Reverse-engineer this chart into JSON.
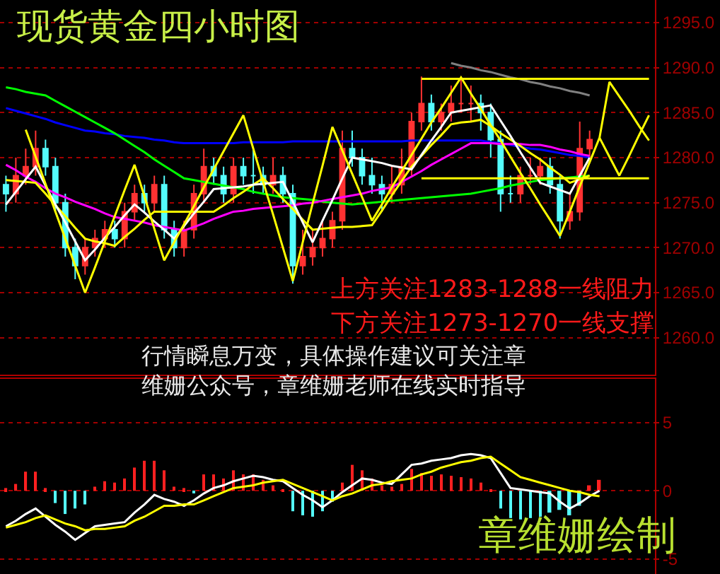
{
  "chart_data": [
    {
      "type": "candlestick",
      "title": "现货黄金四小时图",
      "categories": [
        null,
        null,
        null,
        null,
        null,
        null,
        null,
        null,
        null,
        null,
        null,
        null,
        null,
        null,
        null,
        null,
        null,
        null,
        null,
        null,
        null,
        null,
        null,
        null,
        null,
        null,
        null,
        null,
        null,
        null,
        null,
        null,
        null,
        null,
        null,
        null,
        null,
        null,
        null,
        null,
        null,
        null,
        null,
        null,
        null,
        null,
        null,
        null,
        null,
        null,
        null,
        null,
        null,
        null,
        null,
        null,
        null,
        null,
        null,
        null,
        null,
        null,
        null,
        null,
        null,
        null
      ],
      "ohlc": [
        [
          1277,
          1278,
          1274,
          1276
        ],
        [
          1276,
          1280,
          1275,
          1278
        ],
        [
          1278,
          1281,
          1277,
          1279
        ],
        [
          1279,
          1283,
          1278,
          1281
        ],
        [
          1281,
          1282,
          1278,
          1279
        ],
        [
          1279,
          1280,
          1274,
          1275
        ],
        [
          1275,
          1276,
          1269,
          1270
        ],
        [
          1270,
          1271,
          1266.5,
          1268
        ],
        [
          1268,
          1271,
          1267,
          1270
        ],
        [
          1270,
          1272,
          1269,
          1271
        ],
        [
          1271,
          1273,
          1270,
          1272
        ],
        [
          1272,
          1273,
          1270,
          1271
        ],
        [
          1271,
          1275,
          1270,
          1274
        ],
        [
          1274,
          1277,
          1273,
          1276
        ],
        [
          1276,
          1277,
          1274,
          1275
        ],
        [
          1275,
          1278,
          1274,
          1277
        ],
        [
          1277,
          1278,
          1271,
          1272
        ],
        [
          1272,
          1273,
          1269,
          1270
        ],
        [
          1270,
          1273,
          1269,
          1272
        ],
        [
          1272,
          1277,
          1271,
          1276
        ],
        [
          1276,
          1281,
          1275,
          1279
        ],
        [
          1279,
          1280,
          1277,
          1278
        ],
        [
          1278,
          1279,
          1275,
          1276
        ],
        [
          1276,
          1280,
          1275,
          1279
        ],
        [
          1279,
          1280,
          1277,
          1278
        ],
        [
          1278,
          1281,
          1276,
          1278
        ],
        [
          1278,
          1279,
          1276,
          1277
        ],
        [
          1277,
          1280,
          1276,
          1278
        ],
        [
          1278,
          1279,
          1275,
          1276
        ],
        [
          1276,
          1277,
          1266,
          1268
        ],
        [
          1268,
          1272,
          1267,
          1269
        ],
        [
          1269,
          1272,
          1268,
          1270
        ],
        [
          1270,
          1273,
          1269,
          1271
        ],
        [
          1271,
          1274,
          1270,
          1273
        ],
        [
          1273,
          1283,
          1272,
          1281
        ],
        [
          1281,
          1283,
          1279,
          1280
        ],
        [
          1280,
          1281,
          1277,
          1278
        ],
        [
          1278,
          1280,
          1276,
          1277
        ],
        [
          1277,
          1278,
          1274,
          1276
        ],
        [
          1276,
          1279,
          1275,
          1277
        ],
        [
          1277,
          1281,
          1276,
          1279
        ],
        [
          1279,
          1285,
          1278,
          1284
        ],
        [
          1284,
          1289,
          1283,
          1286
        ],
        [
          1286,
          1287,
          1283,
          1284
        ],
        [
          1284,
          1286,
          1283,
          1285
        ],
        [
          1285,
          1288,
          1284,
          1286
        ],
        [
          1286,
          1289,
          1285,
          1286
        ],
        [
          1286,
          1288,
          1284,
          1286
        ],
        [
          1286,
          1287,
          1283,
          1285
        ],
        [
          1285,
          1286,
          1280,
          1282
        ],
        [
          1282,
          1283,
          1274,
          1276
        ],
        [
          1276,
          1278,
          1275,
          1276
        ],
        [
          1276,
          1279,
          1275,
          1278
        ],
        [
          1278,
          1280,
          1277,
          1278
        ],
        [
          1278,
          1280,
          1277,
          1279
        ],
        [
          1279,
          1280,
          1276,
          1277
        ],
        [
          1277,
          1278,
          1271,
          1273
        ],
        [
          1273,
          1276,
          1272,
          1274
        ],
        [
          1274,
          1284,
          1273,
          1281
        ],
        [
          1281,
          1283,
          1280,
          1282
        ],
        null,
        null,
        null,
        null,
        null,
        null
      ],
      "ylim": [
        1255.9,
        1297.5
      ],
      "yticks": [
        {
          "value": 1260,
          "label": "1260.0"
        },
        {
          "value": 1265,
          "label": "1265.0"
        },
        {
          "value": 1270,
          "label": "1270.0"
        },
        {
          "value": 1275,
          "label": "1275.0"
        },
        {
          "value": 1280,
          "label": "1280.0"
        },
        {
          "value": 1285,
          "label": "1285.0"
        },
        {
          "value": 1290,
          "label": "1290.0"
        },
        {
          "value": 1295,
          "label": "1295.0"
        }
      ],
      "tick_labels": "y",
      "grid": "y",
      "line_style": "solid",
      "series": [
        {
          "type": "line",
          "color": "#0000ff",
          "values": [
            1285.5,
            1285.2,
            1284.9,
            1284.6,
            1284.3,
            1283.9,
            1283.6,
            1283.3,
            1283.0,
            1282.9,
            1282.7,
            1282.6,
            1282.4,
            1282.3,
            1282.2,
            1282.0,
            1281.9,
            1281.7,
            1281.6,
            1281.6,
            1281.6,
            1281.6,
            1281.6,
            1281.6,
            1281.7,
            1281.7,
            1281.7,
            1281.7,
            1281.7,
            1281.8,
            1281.8,
            1281.8,
            1281.8,
            1281.8,
            1281.8,
            1281.8,
            1281.8,
            1281.8,
            1281.8,
            1281.8,
            1281.8,
            1281.9,
            1281.9,
            1281.9,
            1281.9,
            1281.9,
            1281.9,
            1281.9,
            1281.9,
            1281.7,
            1281.6,
            1281.4,
            1281.2,
            1281.0,
            1280.9,
            1280.7,
            1280.5,
            1280.3,
            1280.2,
            1280.0,
            null,
            null,
            null,
            null,
            null,
            null
          ]
        },
        {
          "type": "line",
          "color": "#00ff00",
          "values": [
            1287.8,
            1287.6,
            1287.3,
            1287.1,
            1286.9,
            1286.3,
            1285.7,
            1285.1,
            1284.5,
            1283.9,
            1283.3,
            1282.7,
            1282.0,
            1281.3,
            1280.6,
            1279.8,
            1279.1,
            1278.4,
            1277.7,
            1277.5,
            1277.3,
            1277.1,
            1276.9,
            1276.7,
            1276.5,
            1276.2,
            1276.0,
            1275.8,
            1275.6,
            1275.5,
            1275.4,
            1275.3,
            1275.1,
            1275.0,
            1274.9,
            1274.8,
            1274.9,
            1275.0,
            1275.1,
            1275.2,
            1275.3,
            1275.4,
            1275.5,
            1275.6,
            1275.7,
            1275.8,
            1275.9,
            1276.0,
            1276.2,
            1276.4,
            1276.6,
            1276.9,
            1277.1,
            1277.3,
            1277.5,
            1277.6,
            1277.7,
            1277.8,
            1277.9,
            1278.0,
            null,
            null,
            null,
            null,
            null,
            null
          ]
        },
        {
          "type": "line",
          "color": "#ff00ff",
          "values": [
            1279.2,
            1278.6,
            1277.9,
            1277.3,
            1276.6,
            1276.0,
            1275.6,
            1275.1,
            1274.7,
            1274.3,
            1273.8,
            1273.4,
            1273.2,
            1273.0,
            1272.8,
            1272.5,
            1272.3,
            1272.1,
            1271.9,
            1272.3,
            1272.7,
            1273.2,
            1273.6,
            1274.0,
            1274.1,
            1274.3,
            1274.4,
            1274.5,
            1274.6,
            1274.7,
            1274.9,
            1275.0,
            1275.2,
            1275.4,
            1275.6,
            1275.8,
            1276.0,
            1276.3,
            1276.5,
            1276.7,
            1277.3,
            1277.9,
            1278.5,
            1279.2,
            1279.8,
            1280.4,
            1281.0,
            1281.6,
            1281.6,
            1281.6,
            1281.5,
            1281.5,
            1281.5,
            1281.4,
            1281.4,
            1281.2,
            1280.9,
            1280.7,
            1280.4,
            1280.2,
            null,
            null,
            null,
            null,
            null,
            null
          ]
        },
        {
          "type": "line",
          "color": "#ffff00",
          "values": [
            1277.5,
            1277.4,
            1277.3,
            1277.2,
            1276.0,
            1274.7,
            1273.5,
            1272.2,
            1271.0,
            1270.7,
            1270.5,
            1270.2,
            1271.2,
            1272.1,
            1273.1,
            1274.0,
            1274.0,
            1274.0,
            1274.0,
            1274.0,
            1274.0,
            1274.0,
            1274.7,
            1275.5,
            1276.2,
            1277.0,
            1277.7,
            1276.6,
            1275.4,
            1274.3,
            1273.1,
            1272.0,
            1272.1,
            1272.2,
            1272.3,
            1272.3,
            1272.4,
            1272.5,
            1274.1,
            1275.8,
            1277.4,
            1279.0,
            1280.2,
            1281.4,
            1282.5,
            1283.7,
            1283.9,
            1284.0,
            1284.2,
            1283.5,
            1282.7,
            1282.0,
            1281.3,
            1280.5,
            1279.8,
            1278.9,
            1278.1,
            1277.2,
            1277.6,
            1278.0,
            null,
            null,
            null,
            null,
            null,
            null
          ]
        },
        {
          "type": "line",
          "color": "#ffffff",
          "values": [
            1274.8,
            1276.2,
            1277.6,
            1279.0,
            1276.9,
            1274.8,
            1272.8,
            1270.7,
            1268.6,
            1269.8,
            1271.1,
            1272.3,
            1273.6,
            1274.8,
            1273.9,
            1272.9,
            1272.0,
            1271.0,
            1272.4,
            1273.8,
            1275.1,
            1276.5,
            1276.6,
            1276.7,
            1276.8,
            1277.0,
            1277.1,
            1277.2,
            1277.3,
            1275.1,
            1272.8,
            1270.6,
            1273.0,
            1275.3,
            1277.7,
            1280.0,
            1279.8,
            1279.6,
            1279.4,
            1279.1,
            1278.9,
            1278.7,
            1280.3,
            1281.9,
            1283.4,
            1285.0,
            1285.2,
            1285.4,
            1285.6,
            1285.8,
            1284.1,
            1282.4,
            1280.6,
            1278.9,
            1277.2,
            1276.8,
            1276.4,
            1276.0,
            1278.0,
            1280.0,
            null,
            null,
            null,
            null,
            null,
            null
          ]
        },
        {
          "type": "line",
          "color": "#808080",
          "values": [
            null,
            null,
            null,
            null,
            null,
            null,
            null,
            null,
            null,
            null,
            null,
            null,
            null,
            null,
            null,
            null,
            null,
            null,
            null,
            null,
            null,
            null,
            null,
            null,
            null,
            null,
            null,
            null,
            null,
            null,
            null,
            null,
            null,
            null,
            null,
            null,
            null,
            null,
            null,
            null,
            null,
            null,
            null,
            null,
            null,
            1290.5,
            1290.2,
            1290.0,
            1289.7,
            1289.5,
            1289.2,
            1288.9,
            1288.7,
            1288.4,
            1288.2,
            1287.9,
            1287.7,
            1287.4,
            1287.2,
            1286.9,
            null,
            null,
            null,
            null,
            null,
            null
          ]
        },
        {
          "type": "line",
          "color": "#ffff00",
          "values": [
            null,
            null,
            null,
            null,
            null,
            null,
            null,
            null,
            null,
            null,
            null,
            null,
            null,
            null,
            null,
            null,
            null,
            null,
            null,
            null,
            null,
            null,
            null,
            null,
            null,
            null,
            null,
            null,
            null,
            null,
            null,
            null,
            null,
            null,
            null,
            null,
            null,
            null,
            null,
            null,
            null,
            null,
            1288.75,
            1288.75,
            1288.75,
            1288.75,
            1288.75,
            1288.75,
            1288.75,
            1288.75,
            1288.75,
            1288.75,
            1288.75,
            1288.75,
            1288.75,
            1288.75,
            1288.75,
            1288.75,
            1288.75,
            1288.75,
            1288.75,
            1288.75,
            1288.75,
            1288.75,
            1288.75,
            1288.75
          ]
        },
        {
          "type": "line",
          "color": "#ffff00",
          "values": [
            null,
            null,
            null,
            null,
            null,
            null,
            null,
            null,
            null,
            null,
            null,
            null,
            null,
            null,
            null,
            null,
            null,
            null,
            null,
            null,
            null,
            null,
            null,
            null,
            null,
            null,
            null,
            null,
            null,
            null,
            null,
            null,
            null,
            null,
            null,
            null,
            null,
            null,
            null,
            null,
            null,
            null,
            1277.7,
            1277.7,
            1277.7,
            1277.7,
            1277.7,
            1277.7,
            1277.7,
            1277.7,
            1277.7,
            1277.7,
            1277.7,
            1277.7,
            1277.7,
            1277.7,
            1277.7,
            1277.7,
            1277.7,
            1277.7,
            1277.7,
            1277.7,
            1277.7,
            1277.7,
            1277.7,
            1277.7
          ]
        },
        {
          "type": "line",
          "color": "#ffff00",
          "values": [
            null,
            null,
            1283.1,
            1280.1,
            1277.1,
            1274.0,
            1271.0,
            1268.0,
            1265.0,
            1267.8,
            1270.7,
            1273.5,
            1276.4,
            1279.2,
            1275.7,
            1272.1,
            1268.6,
            1270.6,
            1272.6,
            1274.6,
            1276.7,
            1278.7,
            1280.7,
            1282.7,
            1284.7,
            1281.0,
            1277.3,
            1273.7,
            1270.0,
            1266.3,
            1270.6,
            1274.9,
            1279.1,
            1283.4,
            1280.8,
            1278.2,
            1275.6,
            1273.0,
            1274.8,
            1276.7,
            1278.5,
            1280.3,
            1282.1,
            1283.9,
            1285.5,
            1287.2,
            1288.9,
            1287.1,
            1285.4,
            1283.6,
            1281.9,
            1280.1,
            1278.3,
            1276.6,
            1274.8,
            1273.1,
            1271.3,
            1274.0,
            1276.8,
            1279.5,
            1282.2,
            1288.4,
            1286.8,
            1285.2,
            1283.5,
            1281.9
          ]
        },
        {
          "type": "line",
          "color": "#ffff00",
          "values": [
            null,
            null,
            null,
            null,
            null,
            null,
            null,
            null,
            null,
            null,
            null,
            null,
            null,
            null,
            null,
            null,
            null,
            null,
            null,
            null,
            null,
            null,
            null,
            null,
            null,
            null,
            null,
            null,
            null,
            null,
            null,
            null,
            null,
            null,
            null,
            null,
            null,
            null,
            null,
            null,
            null,
            null,
            null,
            null,
            null,
            null,
            null,
            null,
            null,
            null,
            null,
            null,
            null,
            null,
            null,
            null,
            null,
            null,
            null,
            null,
            1282.2,
            1280.1,
            1278.0,
            1280.2,
            1282.5,
            1284.7
          ]
        }
      ],
      "annotations": [
        "上方关注1283-1288一线阻力",
        "下方关注1273-1270一线支撑",
        "行情瞬息万变，具体操作建议可关注章",
        "维姗公众号，章维姗老师在线实时指导"
      ]
    },
    {
      "type": "bar",
      "categories": [
        null,
        null,
        null,
        null,
        null,
        null,
        null,
        null,
        null,
        null,
        null,
        null,
        null,
        null,
        null,
        null,
        null,
        null,
        null,
        null,
        null,
        null,
        null,
        null,
        null,
        null,
        null,
        null,
        null,
        null,
        null,
        null,
        null,
        null,
        null,
        null,
        null,
        null,
        null,
        null,
        null,
        null,
        null,
        null,
        null,
        null,
        null,
        null,
        null,
        null,
        null,
        null,
        null,
        null,
        null,
        null,
        null,
        null,
        null,
        null,
        null,
        null,
        null,
        null,
        null,
        null
      ],
      "ylim": [
        -6.1,
        8.2
      ],
      "yticks": [
        5,
        0,
        -5
      ],
      "tick_labels": "y",
      "grid": "y",
      "line_style": "solid",
      "series": [
        {
          "type": "bar",
          "values": [
            0.2,
            0.5,
            1.4,
            1.4,
            0.2,
            -0.9,
            -1.7,
            -1.3,
            -1.0,
            0.3,
            0.7,
            0.6,
            0.9,
            1.7,
            2.2,
            2.2,
            1.5,
            0.3,
            0.2,
            -0.1,
            1.2,
            1.2,
            0.9,
            1.5,
            1.2,
            1.2,
            0.8,
            0.4,
            0.1,
            -1.5,
            -1.8,
            -1.9,
            -1.5,
            -0.8,
            0.6,
            1.9,
            1.5,
            0.9,
            0.4,
            0.3,
            0.5,
            1.6,
            1.3,
            1.1,
            1.2,
            1.1,
            1.0,
            0.9,
            0.6,
            0.1,
            -1.3,
            -2.0,
            -2.1,
            -2.0,
            -1.9,
            -1.6,
            -1.4,
            -1.8,
            -1.1,
            0.4,
            0.8,
            null,
            null,
            null,
            null,
            null
          ],
          "colors": [
            "#ff2020",
            "#ff2020",
            "#ff2020",
            "#ff2020",
            "#ff2020",
            "#54fcfc",
            "#54fcfc",
            "#54fcfc",
            "#54fcfc",
            "#ff2020",
            "#ff2020",
            "#ff2020",
            "#ff2020",
            "#ff2020",
            "#ff2020",
            "#ff2020",
            "#ff2020",
            "#ff2020",
            "#ff2020",
            "#54fcfc",
            "#ff2020",
            "#ff2020",
            "#ff2020",
            "#ff2020",
            "#ff2020",
            "#ff2020",
            "#ff2020",
            "#ff2020",
            "#ff2020",
            "#54fcfc",
            "#54fcfc",
            "#54fcfc",
            "#54fcfc",
            "#54fcfc",
            "#ff2020",
            "#ff2020",
            "#ff2020",
            "#ff2020",
            "#ff2020",
            "#ff2020",
            "#ff2020",
            "#ff2020",
            "#ff2020",
            "#ff2020",
            "#ff2020",
            "#ff2020",
            "#ff2020",
            "#ff2020",
            "#ff2020",
            "#ff2020",
            "#54fcfc",
            "#54fcfc",
            "#54fcfc",
            "#54fcfc",
            "#54fcfc",
            "#54fcfc",
            "#54fcfc",
            "#54fcfc",
            "#54fcfc",
            "#ff2020",
            "#ff2020",
            null,
            null,
            null,
            null,
            null
          ]
        },
        {
          "type": "line",
          "color": "#ffffff",
          "values": [
            -2.6,
            -2.2,
            -1.7,
            -1.3,
            -1.9,
            -2.5,
            -3.0,
            -3.6,
            -3.1,
            -2.6,
            -2.5,
            -2.4,
            -2.3,
            -1.6,
            -1.0,
            -0.3,
            -0.6,
            -0.8,
            -1.1,
            -0.7,
            -0.2,
            0.2,
            0.4,
            0.7,
            0.9,
            1.1,
            1.0,
            0.8,
            0.7,
            0.2,
            -0.3,
            -0.7,
            -1.2,
            -0.7,
            -0.1,
            0.4,
            0.9,
            0.8,
            0.6,
            0.5,
            1.2,
            1.9,
            2.0,
            2.2,
            2.3,
            2.4,
            2.6,
            2.7,
            2.6,
            2.4,
            1.3,
            0.2,
            0.1,
            0.0,
            -0.1,
            -0.2,
            -0.8,
            -1.3,
            -0.9,
            -0.4,
            0.0,
            null,
            null,
            null,
            null,
            null
          ]
        },
        {
          "type": "line",
          "color": "#ffff00",
          "values": [
            -2.7,
            -2.5,
            -2.3,
            -2.0,
            -1.8,
            -2.1,
            -2.4,
            -2.6,
            -2.9,
            -2.8,
            -2.8,
            -2.7,
            -2.6,
            -2.2,
            -1.9,
            -1.5,
            -1.1,
            -1.1,
            -1.0,
            -1.0,
            -0.7,
            -0.4,
            -0.1,
            0.2,
            0.3,
            0.4,
            0.6,
            0.7,
            0.8,
            0.5,
            0.2,
            -0.1,
            -0.4,
            -0.7,
            -0.4,
            -0.2,
            0.1,
            0.4,
            0.5,
            0.7,
            0.8,
            0.9,
            1.2,
            1.4,
            1.7,
            1.9,
            2.1,
            2.2,
            2.4,
            2.5,
            2.0,
            1.5,
            1.0,
            0.8,
            0.6,
            0.4,
            0.2,
            0.0,
            -0.1,
            -0.3,
            -0.4,
            null,
            null,
            null,
            null,
            null
          ]
        }
      ],
      "annotations": [
        "章维姗绘制"
      ]
    }
  ]
}
